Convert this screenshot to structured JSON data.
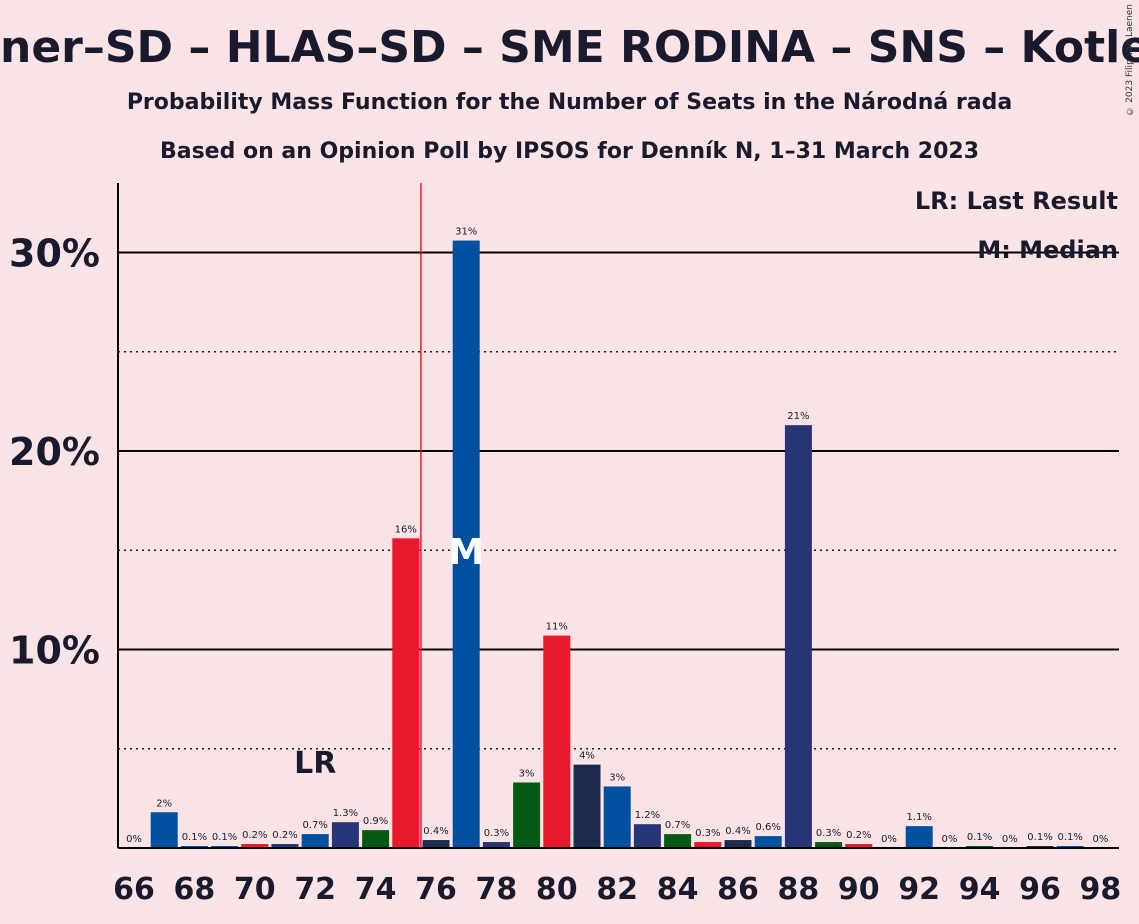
{
  "title": "ner–SD – HLAS–SD – SME RODINA – SNS – Kotleba–ĽS",
  "subtitle1": "Probability Mass Function for the Number of Seats in the Národná rada",
  "subtitle2": "Based on an Opinion Poll by IPSOS for Denník N, 1–31 March 2023",
  "copyright": "© 2023 Filip van Laenen",
  "legend": {
    "lr": "LR: Last Result",
    "median": "M: Median"
  },
  "markers": {
    "last_result_label": "LR",
    "median_label": "M",
    "last_result_seats": 72,
    "median_seats": 77,
    "majority_line_seats": 75.5
  },
  "colors": {
    "background": "#fce4e6",
    "red": "#e8192c",
    "blue": "#0050a0",
    "navy": "#253575",
    "green": "#005a14",
    "darknavy": "#1c2a4e",
    "majority_line": "#e8192c"
  },
  "chart_data": {
    "type": "bar",
    "xlabel": "",
    "ylabel": "",
    "ylim": [
      0,
      33.5
    ],
    "yticks": [
      "10%",
      "20%",
      "30%"
    ],
    "ytick_values": [
      10,
      20,
      30
    ],
    "dotted_gridlines": [
      5,
      15,
      25
    ],
    "xticks": [
      "66",
      "68",
      "70",
      "72",
      "74",
      "76",
      "78",
      "80",
      "82",
      "84",
      "86",
      "88",
      "90",
      "92",
      "94",
      "96",
      "98"
    ],
    "seats": [
      66,
      67,
      68,
      69,
      70,
      71,
      72,
      73,
      74,
      75,
      76,
      77,
      78,
      79,
      80,
      81,
      82,
      83,
      84,
      85,
      86,
      87,
      88,
      89,
      90,
      91,
      92,
      93,
      94,
      95,
      96,
      97,
      98
    ],
    "values": [
      0,
      1.8,
      0.1,
      0.1,
      0.2,
      0.2,
      0.7,
      1.3,
      0.9,
      15.6,
      0.4,
      30.6,
      0.3,
      3.3,
      10.7,
      4.2,
      3.1,
      1.2,
      0.7,
      0.3,
      0.4,
      0.6,
      21.3,
      0.3,
      0.2,
      0,
      1.1,
      0,
      0.1,
      0,
      0.1,
      0.1,
      0
    ],
    "labels": [
      "0%",
      "2%",
      "0.1%",
      "0.1%",
      "0.2%",
      "0.2%",
      "0.7%",
      "1.3%",
      "0.9%",
      "16%",
      "0.4%",
      "31%",
      "0.3%",
      "3%",
      "11%",
      "4%",
      "3%",
      "1.2%",
      "0.7%",
      "0.3%",
      "0.4%",
      "0.6%",
      "21%",
      "0.3%",
      "0.2%",
      "0%",
      "1.1%",
      "0%",
      "0.1%",
      "0%",
      "0.1%",
      "0.1%",
      "0%"
    ],
    "bar_colors": [
      "blue",
      "blue",
      "blue",
      "blue",
      "red",
      "navy",
      "blue",
      "navy",
      "green",
      "red",
      "darknavy",
      "blue",
      "navy",
      "green",
      "red",
      "darknavy",
      "blue",
      "navy",
      "green",
      "red",
      "darknavy",
      "blue",
      "navy",
      "green",
      "red",
      "darknavy",
      "blue",
      "navy",
      "green",
      "red",
      "darknavy",
      "blue",
      "navy"
    ]
  }
}
